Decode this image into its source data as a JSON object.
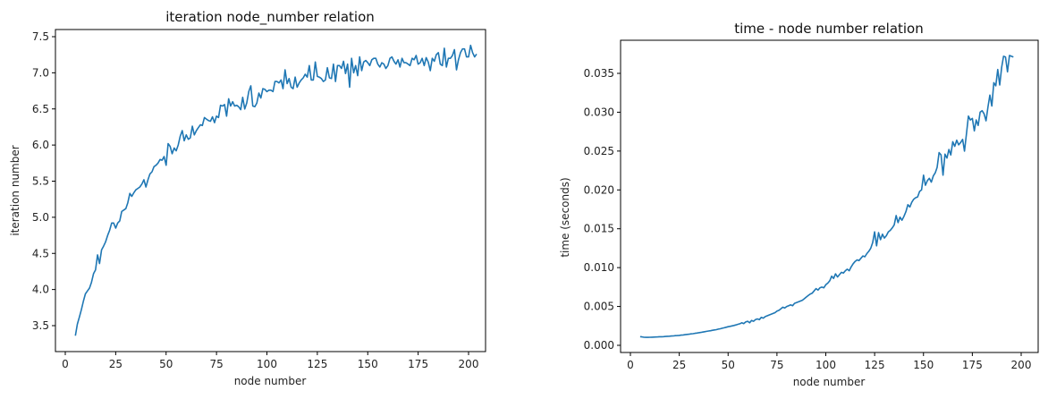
{
  "chart_data": [
    {
      "type": "line",
      "title": "iteration node_number relation",
      "xlabel": "node number",
      "ylabel": "iteration number",
      "xlim": [
        -3,
        209
      ],
      "ylim": [
        3.15,
        7.6
      ],
      "xticks": [
        "0",
        "25",
        "50",
        "75",
        "100",
        "125",
        "150",
        "175",
        "200"
      ],
      "yticks": [
        "3.5",
        "4.0",
        "4.5",
        "5.0",
        "5.5",
        "6.0",
        "6.5",
        "7.0",
        "7.5"
      ],
      "grid": false,
      "legend": null,
      "line_color": "#1f77b4",
      "x_start": 5,
      "x_step": 1,
      "values": [
        3.36,
        3.52,
        3.62,
        3.72,
        3.84,
        3.94,
        3.98,
        4.02,
        4.1,
        4.22,
        4.27,
        4.48,
        4.36,
        4.55,
        4.6,
        4.66,
        4.75,
        4.82,
        4.92,
        4.92,
        4.85,
        4.92,
        4.95,
        5.08,
        5.1,
        5.12,
        5.2,
        5.33,
        5.29,
        5.34,
        5.38,
        5.4,
        5.42,
        5.46,
        5.52,
        5.42,
        5.52,
        5.6,
        5.63,
        5.7,
        5.72,
        5.75,
        5.8,
        5.79,
        5.84,
        5.72,
        6.02,
        5.98,
        5.88,
        5.96,
        5.92,
        6.0,
        6.12,
        6.2,
        6.06,
        6.14,
        6.08,
        6.1,
        6.26,
        6.14,
        6.2,
        6.24,
        6.28,
        6.27,
        6.38,
        6.36,
        6.34,
        6.33,
        6.39,
        6.31,
        6.4,
        6.38,
        6.55,
        6.54,
        6.56,
        6.4,
        6.64,
        6.54,
        6.6,
        6.54,
        6.55,
        6.53,
        6.49,
        6.66,
        6.5,
        6.58,
        6.74,
        6.82,
        6.54,
        6.53,
        6.58,
        6.72,
        6.65,
        6.78,
        6.77,
        6.74,
        6.76,
        6.76,
        6.74,
        6.88,
        6.88,
        6.86,
        6.9,
        6.78,
        7.04,
        6.85,
        6.92,
        6.8,
        6.78,
        6.94,
        6.8,
        6.86,
        6.9,
        6.93,
        6.98,
        6.94,
        7.1,
        6.9,
        6.9,
        7.15,
        6.95,
        6.94,
        6.92,
        6.88,
        6.9,
        7.07,
        6.93,
        6.92,
        7.12,
        6.88,
        7.1,
        7.1,
        7.06,
        7.16,
        6.99,
        7.12,
        6.8,
        7.2,
        7.0,
        7.1,
        6.96,
        7.22,
        7.03,
        7.15,
        7.17,
        7.14,
        7.1,
        7.18,
        7.2,
        7.2,
        7.12,
        7.08,
        7.14,
        7.12,
        7.06,
        7.1,
        7.2,
        7.22,
        7.16,
        7.12,
        7.18,
        7.08,
        7.2,
        7.14,
        7.14,
        7.12,
        7.1,
        7.2,
        7.18,
        7.24,
        7.12,
        7.14,
        7.2,
        7.1,
        7.21,
        7.15,
        7.03,
        7.2,
        7.16,
        7.25,
        7.28,
        7.12,
        7.1,
        7.34,
        7.08,
        7.2,
        7.2,
        7.24,
        7.32,
        7.04,
        7.18,
        7.28,
        7.33,
        7.33,
        7.22,
        7.22,
        7.38,
        7.28,
        7.22,
        7.26
      ]
    },
    {
      "type": "line",
      "title": "time - node number relation",
      "xlabel": "node number",
      "ylabel": "time (seconds)",
      "xlim": [
        -5,
        209
      ],
      "ylim": [
        -0.0009,
        0.0393
      ],
      "xticks": [
        "0",
        "25",
        "50",
        "75",
        "100",
        "125",
        "150",
        "175",
        "200"
      ],
      "yticks": [
        "0.000",
        "0.005",
        "0.010",
        "0.015",
        "0.020",
        "0.025",
        "0.030",
        "0.035"
      ],
      "grid": false,
      "legend": null,
      "line_color": "#1f77b4",
      "x_start": 5,
      "x_step": 1,
      "values": [
        0.00112,
        0.00108,
        0.00104,
        0.00103,
        0.00103,
        0.00104,
        0.00105,
        0.00106,
        0.00107,
        0.00108,
        0.0011,
        0.00111,
        0.00112,
        0.00114,
        0.00116,
        0.00118,
        0.0012,
        0.00121,
        0.00124,
        0.00126,
        0.00128,
        0.00131,
        0.00134,
        0.00137,
        0.0014,
        0.00143,
        0.00147,
        0.0015,
        0.00154,
        0.00158,
        0.00162,
        0.00166,
        0.0017,
        0.00175,
        0.0018,
        0.00184,
        0.00188,
        0.00193,
        0.00198,
        0.00202,
        0.00208,
        0.00213,
        0.0022,
        0.00226,
        0.00232,
        0.0024,
        0.00244,
        0.0025,
        0.00256,
        0.00262,
        0.0027,
        0.00278,
        0.0029,
        0.0028,
        0.003,
        0.0031,
        0.0029,
        0.0032,
        0.0031,
        0.0033,
        0.0034,
        0.0033,
        0.0036,
        0.0035,
        0.0037,
        0.0038,
        0.0039,
        0.004,
        0.0041,
        0.0042,
        0.0044,
        0.0045,
        0.0047,
        0.0049,
        0.0048,
        0.005,
        0.0051,
        0.0052,
        0.0051,
        0.0054,
        0.0055,
        0.0056,
        0.0057,
        0.0058,
        0.006,
        0.0062,
        0.0064,
        0.0066,
        0.0067,
        0.007,
        0.0073,
        0.0071,
        0.0074,
        0.0075,
        0.0074,
        0.0078,
        0.008,
        0.0083,
        0.0089,
        0.0086,
        0.0092,
        0.0088,
        0.0091,
        0.0094,
        0.0093,
        0.0096,
        0.0098,
        0.0096,
        0.0101,
        0.0105,
        0.0108,
        0.011,
        0.0109,
        0.0112,
        0.0115,
        0.0114,
        0.0118,
        0.0121,
        0.0125,
        0.0132,
        0.0146,
        0.0128,
        0.0145,
        0.0136,
        0.0143,
        0.0138,
        0.0141,
        0.0146,
        0.0148,
        0.0151,
        0.0155,
        0.0167,
        0.0158,
        0.0165,
        0.0161,
        0.0166,
        0.0172,
        0.0181,
        0.0178,
        0.0184,
        0.0188,
        0.019,
        0.0191,
        0.0198,
        0.02,
        0.0219,
        0.0206,
        0.0212,
        0.0215,
        0.021,
        0.0218,
        0.0222,
        0.0229,
        0.0248,
        0.0245,
        0.0219,
        0.0246,
        0.0241,
        0.0252,
        0.0245,
        0.0262,
        0.0256,
        0.0264,
        0.0258,
        0.0261,
        0.0265,
        0.025,
        0.0272,
        0.0295,
        0.029,
        0.0292,
        0.0276,
        0.029,
        0.0283,
        0.03,
        0.0302,
        0.0298,
        0.0289,
        0.0307,
        0.0322,
        0.0308,
        0.0338,
        0.0334,
        0.0355,
        0.0335,
        0.0358,
        0.0372,
        0.0371,
        0.0352,
        0.0373,
        0.0372,
        0.0371
      ]
    }
  ]
}
